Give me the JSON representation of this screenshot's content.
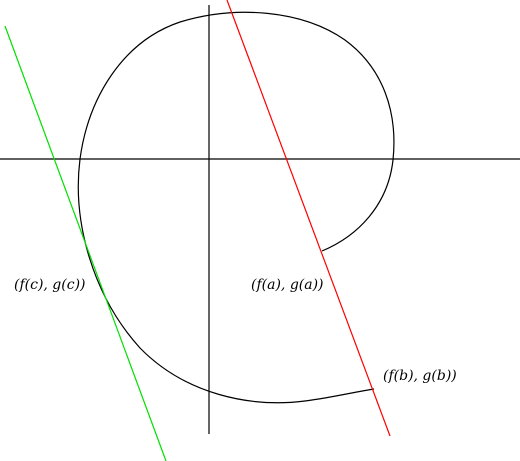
{
  "diagram": {
    "labels": {
      "point_a": "(f(a), g(a))",
      "point_b": "(f(b), g(b))",
      "point_c": "(f(c), g(c))"
    },
    "colors": {
      "axes": "#000000",
      "curve": "#000000",
      "secant_line": "#ff0000",
      "tangent_line": "#00e000",
      "background": "#ffffff"
    }
  }
}
